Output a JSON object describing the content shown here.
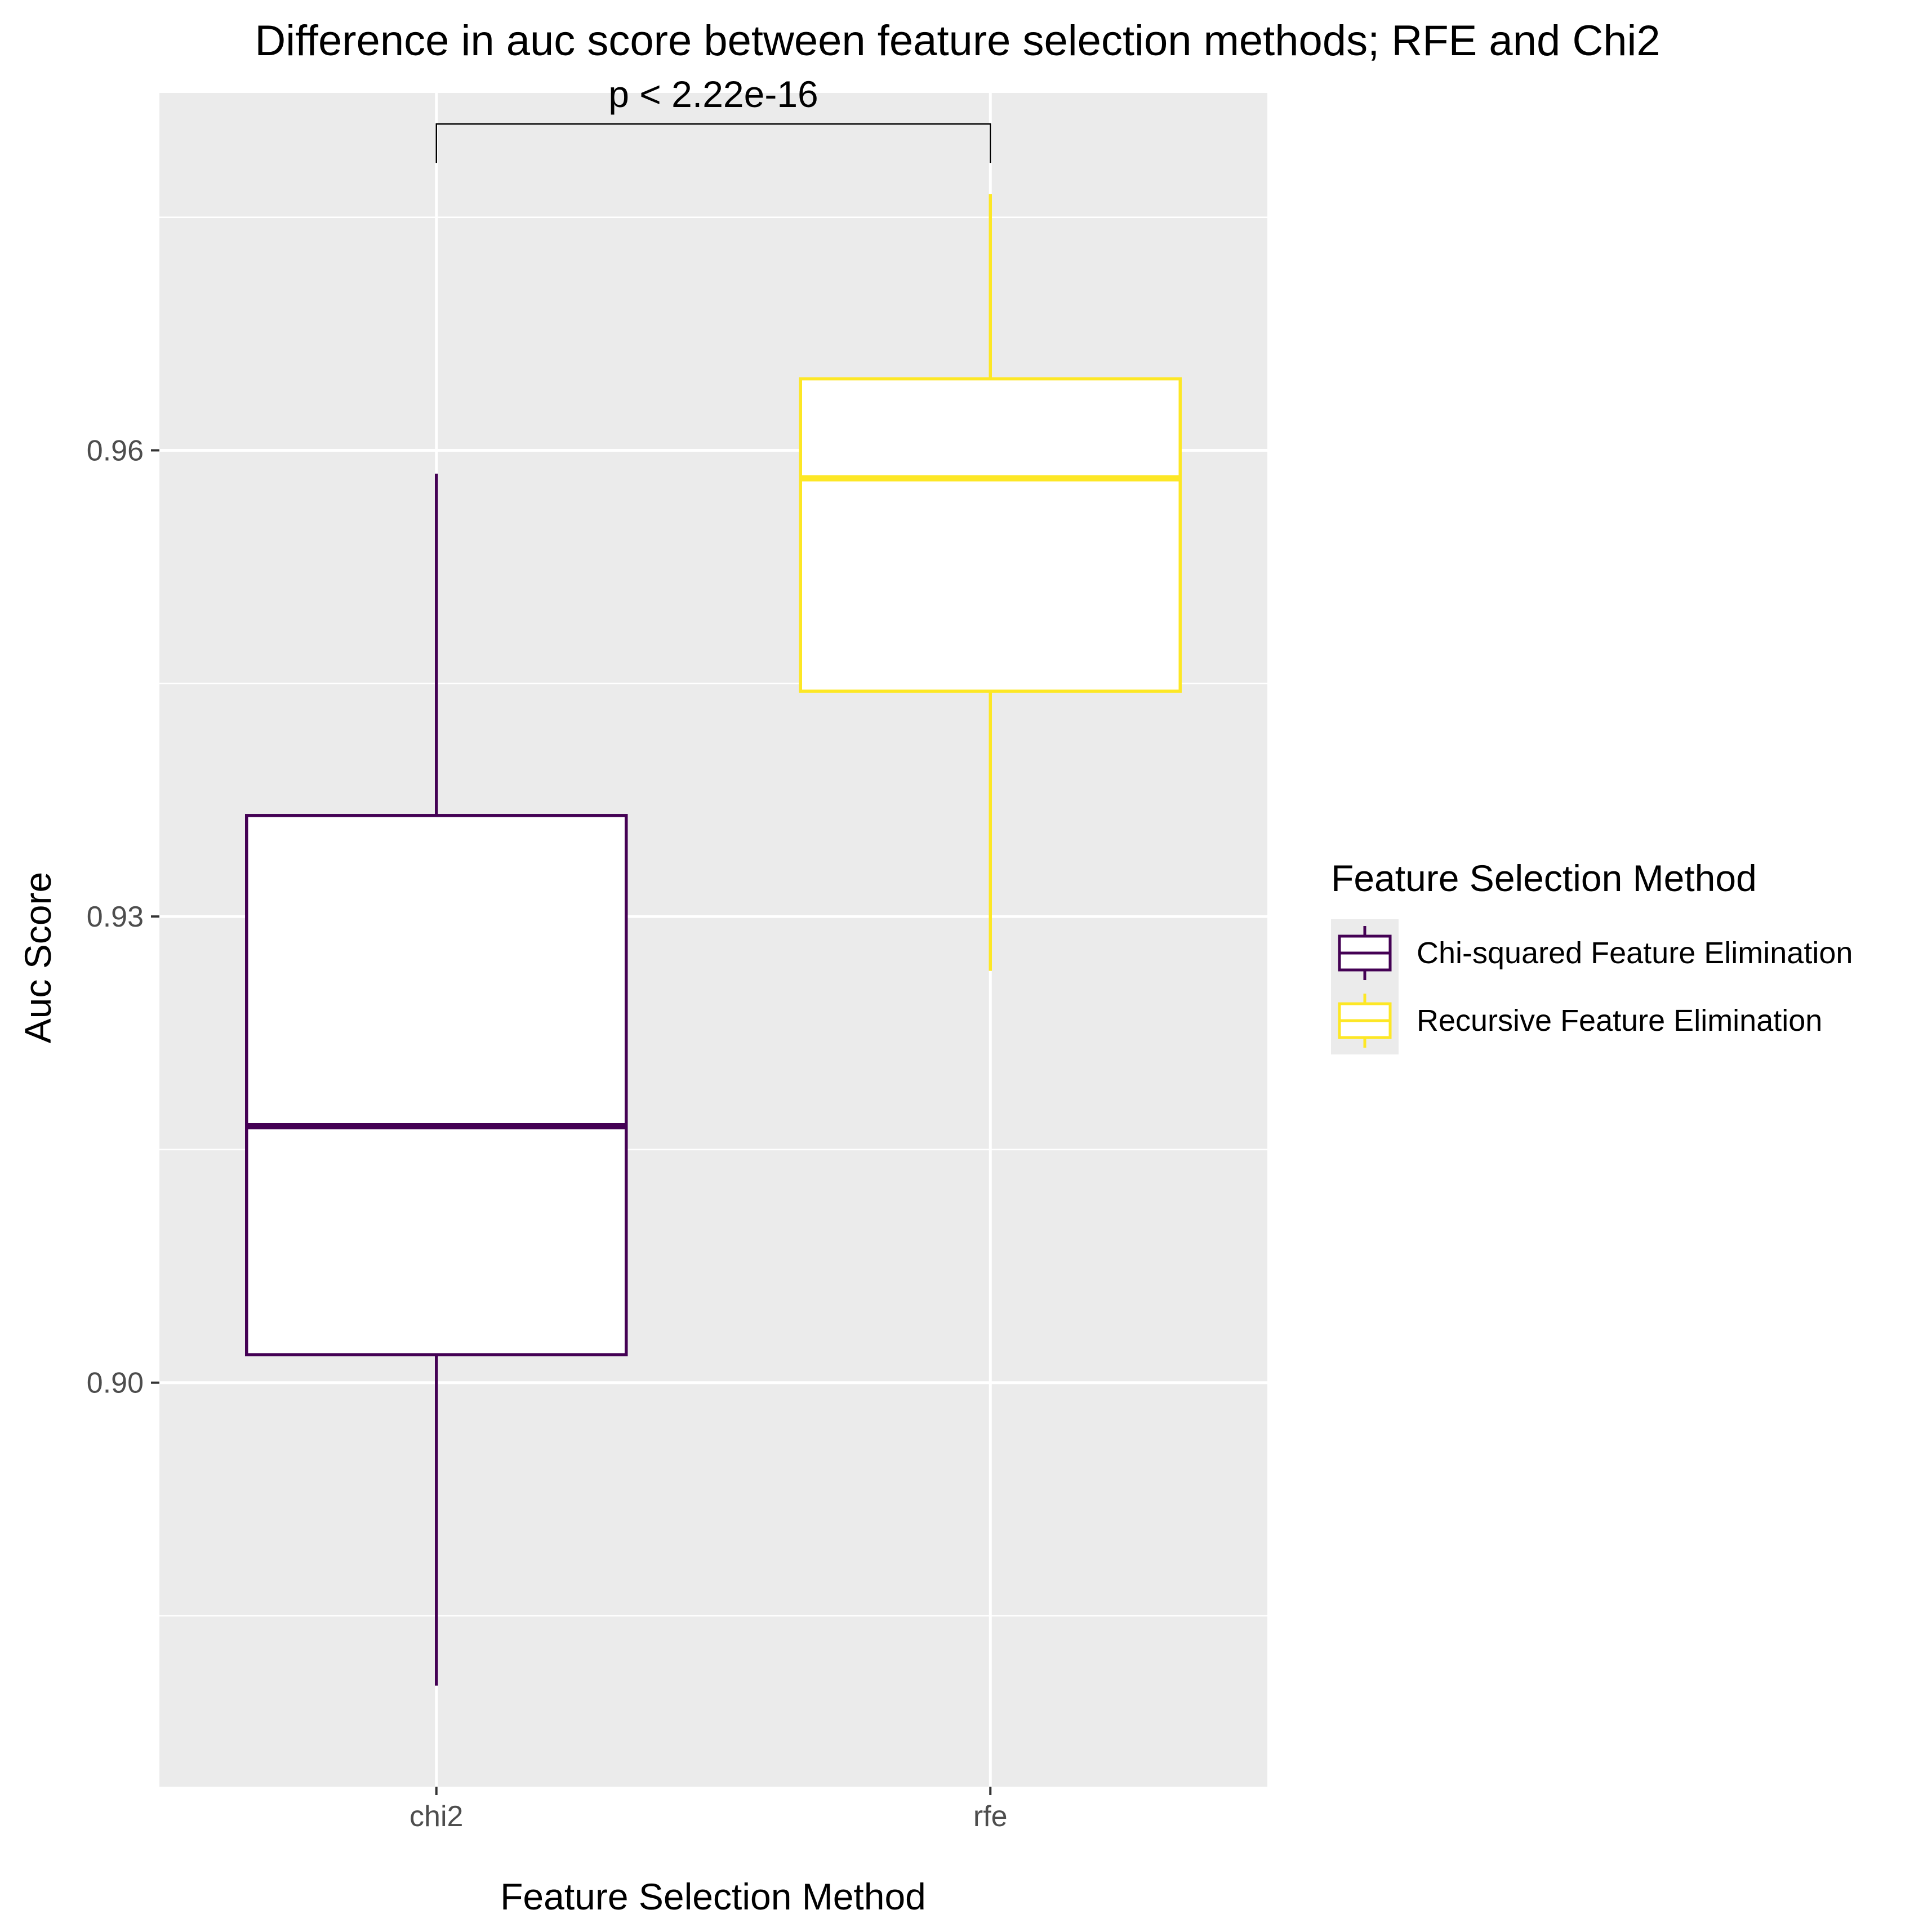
{
  "chart_data": {
    "type": "box",
    "title": "Difference in auc score between feature selection methods; RFE and Chi2",
    "xlabel": "Feature Selection Method",
    "ylabel": "Auc Score",
    "categories": [
      "chi2",
      "rfe"
    ],
    "ylim": [
      0.874,
      0.983
    ],
    "y_ticks": [
      0.9,
      0.93,
      0.96
    ],
    "y_tick_labels": [
      "0.90",
      "0.93",
      "0.96"
    ],
    "y_minor_ticks": [
      0.885,
      0.915,
      0.945,
      0.975
    ],
    "grid": true,
    "series": [
      {
        "name": "Chi-squared Feature Elimination",
        "category": "chi2",
        "color": "#440154",
        "whisker_low": 0.8805,
        "q1": 0.9018,
        "median": 0.9165,
        "q3": 0.9365,
        "whisker_high": 0.9585
      },
      {
        "name": "Recursive Feature Elimination",
        "category": "rfe",
        "color": "#FDE725",
        "whisker_low": 0.9265,
        "q1": 0.9445,
        "median": 0.9582,
        "q3": 0.9646,
        "whisker_high": 0.9765
      }
    ],
    "annotation": {
      "text": "p < 2.22e-16",
      "from": "chi2",
      "to": "rfe",
      "bracket_y": 0.981,
      "tick_bottom_y": 0.9785
    },
    "legend": {
      "title": "Feature Selection Method",
      "position": "right",
      "items": [
        "Chi-squared Feature Elimination",
        "Recursive Feature Elimination"
      ]
    }
  },
  "colors": {
    "panel_background": "#EBEBEB",
    "grid": "#FFFFFF",
    "axis_text": "#4D4D4D",
    "text": "#000000"
  }
}
